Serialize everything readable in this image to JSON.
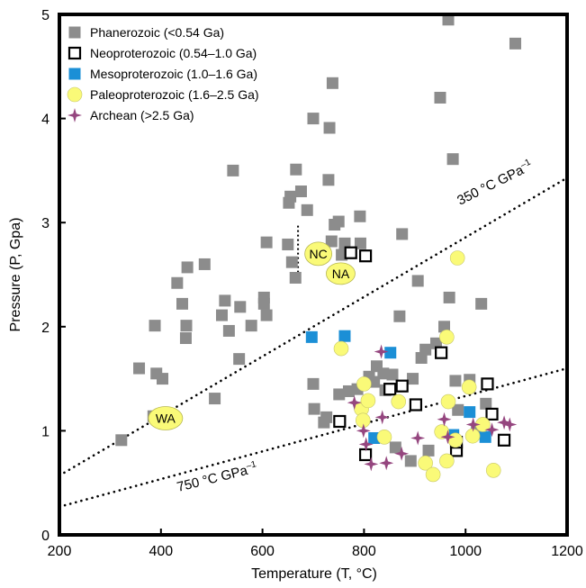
{
  "chart_data": {
    "type": "scatter",
    "xlabel": "Temperature (T, °C)",
    "ylabel": "Pressure (P, Gpa)",
    "xlim": [
      200,
      1200
    ],
    "ylim": [
      0,
      5
    ],
    "x_ticks": [
      "200",
      "400",
      "600",
      "800",
      "1000",
      "1200"
    ],
    "y_ticks": [
      "0",
      "1",
      "2",
      "3",
      "4",
      "5"
    ],
    "grid": false,
    "legend_position": "top-left",
    "series": [
      {
        "name": "Phanerozoic (<0.54 Ga)",
        "marker": "square-filled",
        "color": "#8c8c8c",
        "points": [
          [
            322,
            0.91
          ],
          [
            357,
            1.6
          ],
          [
            385,
            1.14
          ],
          [
            388,
            2.01
          ],
          [
            391,
            1.55
          ],
          [
            403,
            1.5
          ],
          [
            432,
            2.42
          ],
          [
            442,
            2.22
          ],
          [
            450,
            2.01
          ],
          [
            449,
            1.89
          ],
          [
            452,
            2.57
          ],
          [
            486,
            2.6
          ],
          [
            506,
            1.31
          ],
          [
            520,
            2.11
          ],
          [
            526,
            2.25
          ],
          [
            534,
            1.96
          ],
          [
            542,
            3.5
          ],
          [
            554,
            1.69
          ],
          [
            556,
            2.19
          ],
          [
            578,
            2.01
          ],
          [
            603,
            2.28
          ],
          [
            603,
            2.22
          ],
          [
            608,
            2.11
          ],
          [
            608,
            2.81
          ],
          [
            650,
            2.79
          ],
          [
            652,
            3.19
          ],
          [
            655,
            3.25
          ],
          [
            658,
            2.62
          ],
          [
            666,
            3.51
          ],
          [
            665,
            2.47
          ],
          [
            676,
            3.3
          ],
          [
            688,
            3.12
          ],
          [
            700,
            4.0
          ],
          [
            700,
            1.45
          ],
          [
            702,
            1.21
          ],
          [
            708,
            2.69
          ],
          [
            721,
            1.08
          ],
          [
            726,
            1.13
          ],
          [
            730,
            3.41
          ],
          [
            732,
            3.91
          ],
          [
            738,
            4.34
          ],
          [
            736,
            2.82
          ],
          [
            742,
            2.98
          ],
          [
            750,
            3.01
          ],
          [
            751,
            1.35
          ],
          [
            756,
            2.69
          ],
          [
            762,
            2.8
          ],
          [
            770,
            1.38
          ],
          [
            787,
            1.4
          ],
          [
            792,
            3.06
          ],
          [
            793,
            2.8
          ],
          [
            810,
            1.52
          ],
          [
            820,
            1.47
          ],
          [
            825,
            1.62
          ],
          [
            838,
            1.55
          ],
          [
            842,
            1.39
          ],
          [
            856,
            1.54
          ],
          [
            862,
            0.84
          ],
          [
            870,
            2.1
          ],
          [
            875,
            2.89
          ],
          [
            892,
            0.71
          ],
          [
            896,
            1.5
          ],
          [
            906,
            2.44
          ],
          [
            913,
            1.7
          ],
          [
            921,
            1.78
          ],
          [
            927,
            0.81
          ],
          [
            942,
            1.84
          ],
          [
            950,
            4.2
          ],
          [
            958,
            2.0
          ],
          [
            966,
            4.95
          ],
          [
            968,
            2.28
          ],
          [
            975,
            3.61
          ],
          [
            980,
            1.48
          ],
          [
            985,
            1.2
          ],
          [
            1008,
            1.49
          ],
          [
            1022,
            1.01
          ],
          [
            1031,
            2.22
          ],
          [
            1040,
            1.26
          ],
          [
            1098,
            4.72
          ]
        ]
      },
      {
        "name": "Neoproterozoic (0.54–1.0 Ga)",
        "marker": "square-open",
        "color": "#000000",
        "points": [
          [
            752,
            1.09
          ],
          [
            774,
            2.71
          ],
          [
            803,
            2.68
          ],
          [
            803,
            0.77
          ],
          [
            851,
            1.4
          ],
          [
            875,
            1.43
          ],
          [
            902,
            1.25
          ],
          [
            952,
            1.75
          ],
          [
            982,
            0.81
          ],
          [
            982,
            0.89
          ],
          [
            1043,
            1.45
          ],
          [
            1052,
            1.16
          ],
          [
            1076,
            0.91
          ]
        ]
      },
      {
        "name": "Mesoproterozoic (1.0–1.6 Ga)",
        "marker": "square-filled",
        "color": "#1b8fd6",
        "points": [
          [
            697,
            1.9
          ],
          [
            762,
            1.91
          ],
          [
            820,
            0.93
          ],
          [
            852,
            1.75
          ],
          [
            976,
            0.96
          ],
          [
            1008,
            1.18
          ],
          [
            1039,
            0.94
          ]
        ]
      },
      {
        "name": "Paleoproterozoic (1.6–2.5 Ga)",
        "marker": "circle",
        "color": "#fafa78",
        "points": [
          [
            755,
            1.79
          ],
          [
            795,
            1.21
          ],
          [
            798,
            1.1
          ],
          [
            800,
            1.45
          ],
          [
            808,
            1.29
          ],
          [
            840,
            0.94
          ],
          [
            868,
            1.28
          ],
          [
            921,
            0.69
          ],
          [
            936,
            0.58
          ],
          [
            953,
            0.99
          ],
          [
            963,
            1.9
          ],
          [
            963,
            0.71
          ],
          [
            966,
            1.28
          ],
          [
            980,
            0.91
          ],
          [
            984,
            2.66
          ],
          [
            1007,
            1.42
          ],
          [
            1014,
            0.95
          ],
          [
            1034,
            1.06
          ],
          [
            1055,
            0.62
          ]
        ]
      },
      {
        "name": "Archean (>2.5 Ga)",
        "marker": "star",
        "color": "#95467f",
        "points": [
          [
            781,
            1.27
          ],
          [
            799,
            1.0
          ],
          [
            804,
            0.87
          ],
          [
            814,
            0.68
          ],
          [
            834,
            1.76
          ],
          [
            836,
            1.13
          ],
          [
            844,
            0.69
          ],
          [
            874,
            0.78
          ],
          [
            906,
            0.93
          ],
          [
            958,
            1.11
          ],
          [
            965,
            0.94
          ],
          [
            1015,
            1.06
          ],
          [
            1052,
            1.01
          ],
          [
            1076,
            1.08
          ],
          [
            1087,
            1.06
          ]
        ]
      }
    ],
    "reference_lines": [
      {
        "label": "350 °C GPa",
        "label_sup": "–1",
        "points": [
          [
            200,
            0.57
          ],
          [
            1200,
            3.43
          ]
        ]
      },
      {
        "label": "750 °C GPa",
        "label_sup": "–1",
        "points": [
          [
            200,
            0.27
          ],
          [
            1200,
            1.6
          ]
        ]
      }
    ],
    "region_labels": [
      {
        "text": "WA",
        "x": 409,
        "y": 1.12
      },
      {
        "text": "NC",
        "x": 710,
        "y": 2.7
      },
      {
        "text": "NA",
        "x": 754,
        "y": 2.51
      }
    ]
  }
}
